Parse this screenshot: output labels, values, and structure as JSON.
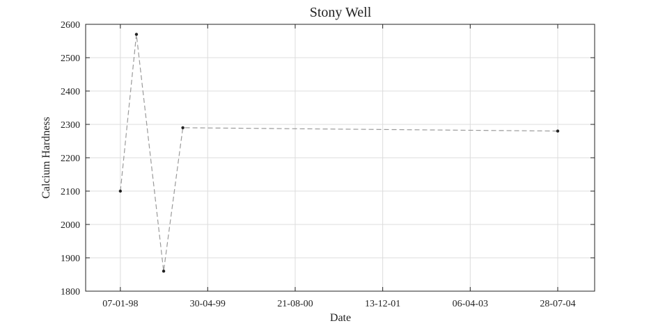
{
  "chart_data": {
    "type": "line",
    "title": "Stony Well",
    "xlabel": "Date",
    "ylabel": "Calcium Hardness",
    "x_tick_labels": [
      "07-01-98",
      "30-04-99",
      "21-08-00",
      "13-12-01",
      "06-04-03",
      "28-07-04"
    ],
    "x_tick_dates": [
      "1998-01-07",
      "1999-04-30",
      "2000-08-21",
      "2001-12-13",
      "2003-04-06",
      "2004-07-28"
    ],
    "xlim": [
      "1997-07-01",
      "2005-02-15"
    ],
    "y_ticks": [
      1800,
      1900,
      2000,
      2100,
      2200,
      2300,
      2400,
      2500,
      2600
    ],
    "ylim": [
      1800,
      2600
    ],
    "grid": true,
    "series": [
      {
        "x": [
          "1998-01-07",
          "1998-04-05",
          "1998-09-01",
          "1998-12-15",
          "2004-07-28"
        ],
        "y": [
          2100,
          2570,
          1860,
          2290,
          2280
        ],
        "line_style": "dashed",
        "line_color": "#9a9a9a",
        "marker_color": "#222222"
      }
    ]
  }
}
